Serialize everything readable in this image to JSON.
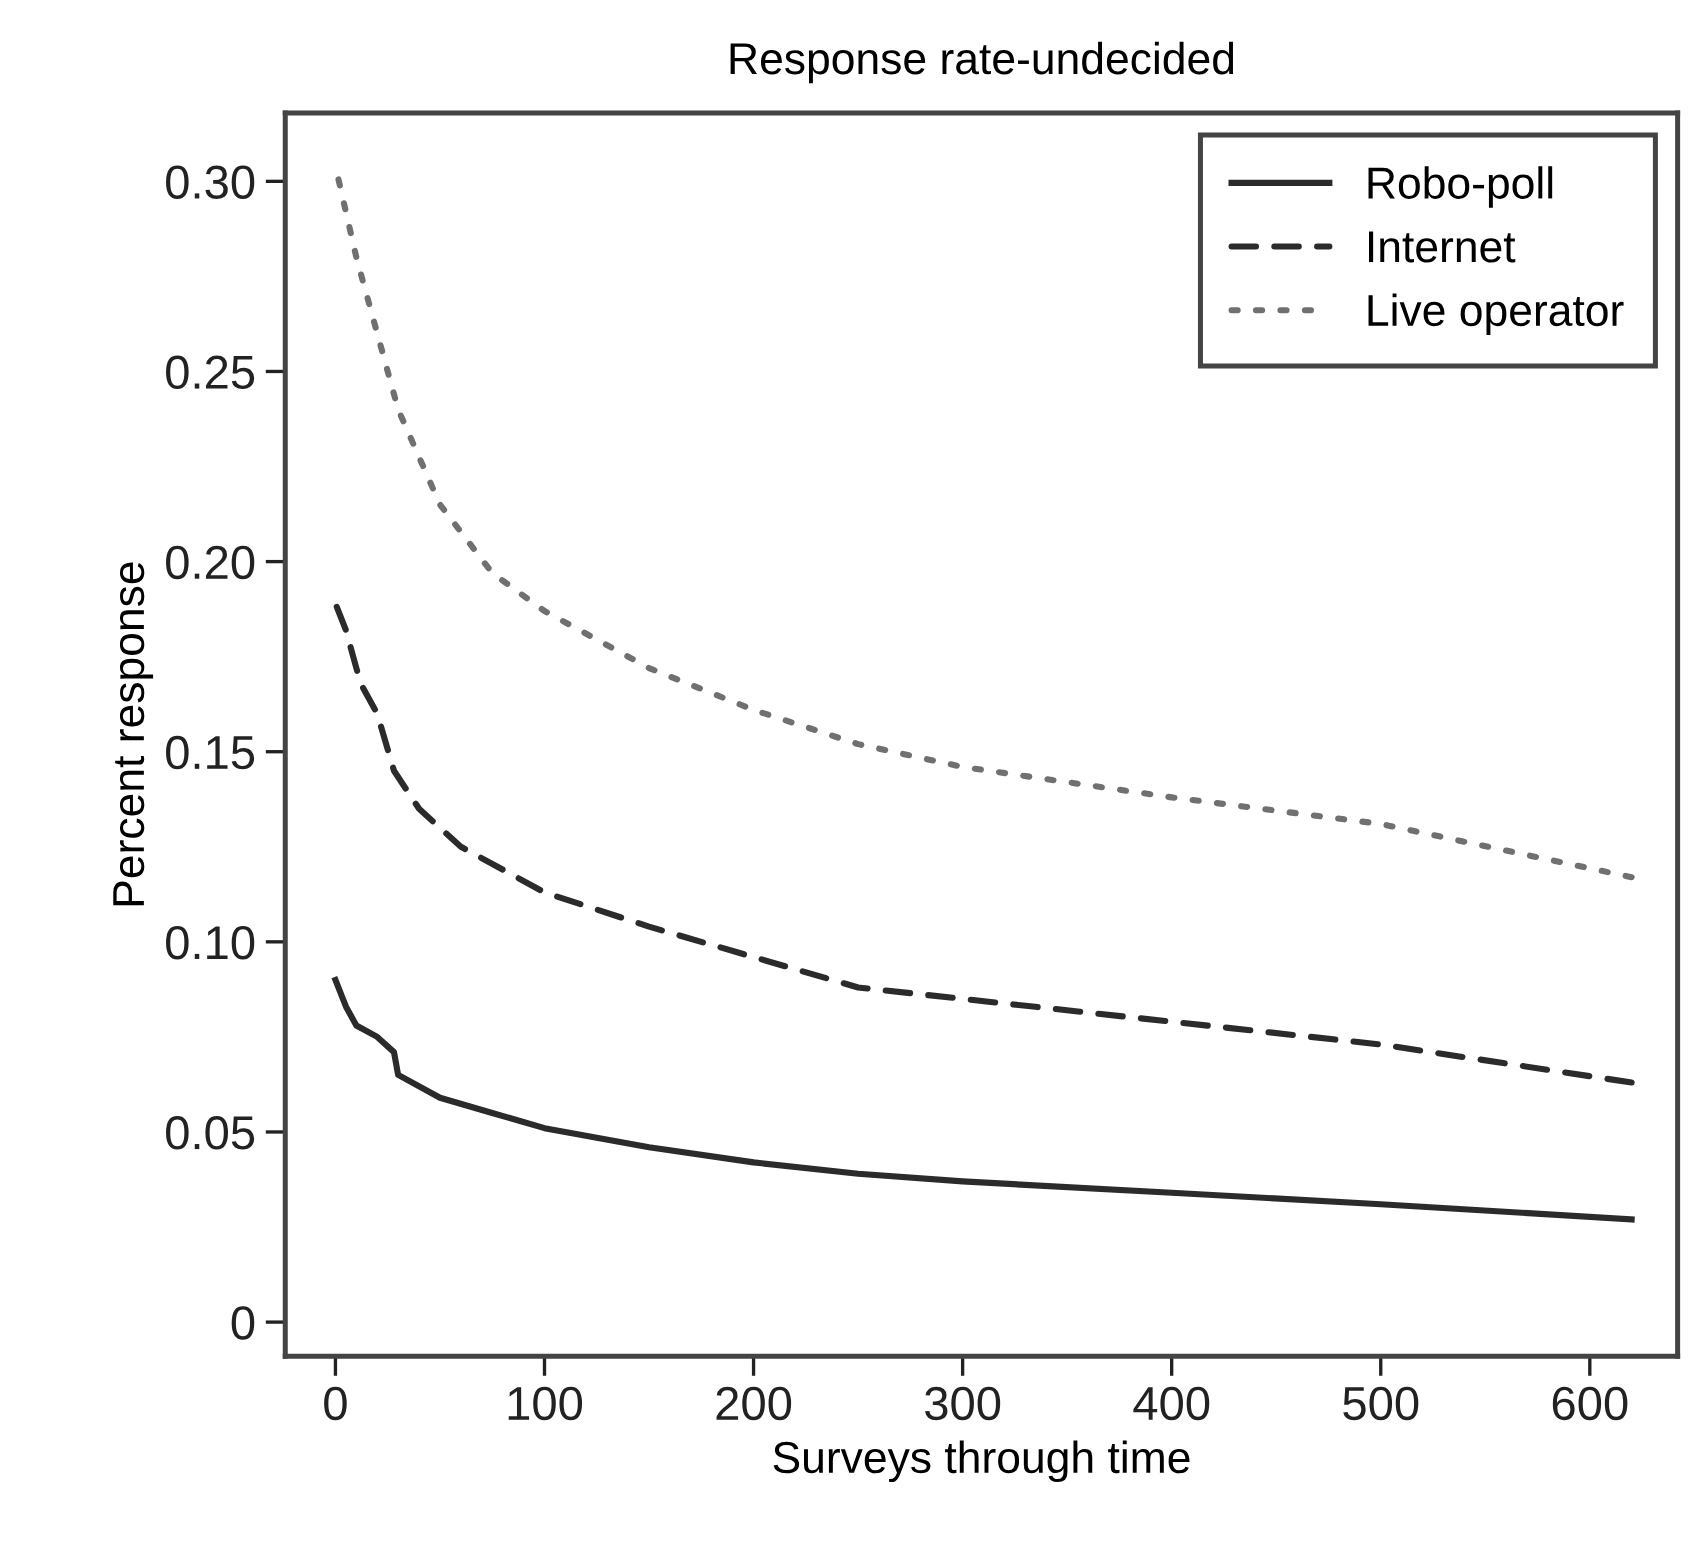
{
  "chart_data": {
    "type": "line",
    "title": "Response rate-undecided",
    "xlabel": "Surveys through time",
    "ylabel": "Percent response",
    "xlim": [
      -24,
      642
    ],
    "ylim": [
      -0.009,
      0.318
    ],
    "xticks": [
      0,
      100,
      200,
      300,
      400,
      500,
      600
    ],
    "yticks": [
      {
        "value": 0,
        "label": "0"
      },
      {
        "value": 0.05,
        "label": "0.05"
      },
      {
        "value": 0.1,
        "label": "0.10"
      },
      {
        "value": 0.15,
        "label": "0.15"
      },
      {
        "value": 0.2,
        "label": "0.20"
      },
      {
        "value": 0.25,
        "label": "0.25"
      },
      {
        "value": 0.3,
        "label": "0.30"
      }
    ],
    "legend": "top right",
    "grid": false,
    "marker": "none",
    "series": [
      {
        "name": "Robo-poll",
        "color": "#2b2b2b",
        "line_style": "solid",
        "x": [
          0,
          5,
          10,
          20,
          28,
          30,
          50,
          75,
          100,
          150,
          200,
          250,
          300,
          400,
          500,
          620
        ],
        "values": [
          0.09,
          0.083,
          0.078,
          0.075,
          0.071,
          0.065,
          0.059,
          0.055,
          0.051,
          0.046,
          0.042,
          0.039,
          0.037,
          0.034,
          0.031,
          0.027
        ]
      },
      {
        "name": "Internet",
        "color": "#2b2b2b",
        "line_style": "dashed",
        "x": [
          0,
          5,
          12,
          20,
          28,
          40,
          60,
          100,
          150,
          200,
          250,
          300,
          400,
          500,
          620
        ],
        "values": [
          0.189,
          0.182,
          0.168,
          0.16,
          0.145,
          0.135,
          0.125,
          0.113,
          0.104,
          0.096,
          0.088,
          0.085,
          0.079,
          0.073,
          0.063
        ]
      },
      {
        "name": "Live operator",
        "color": "#707070",
        "line_style": "dotted",
        "x": [
          0,
          10,
          20,
          30,
          50,
          75,
          100,
          150,
          200,
          250,
          300,
          400,
          500,
          560,
          620
        ],
        "values": [
          0.304,
          0.28,
          0.26,
          0.24,
          0.215,
          0.197,
          0.187,
          0.172,
          0.161,
          0.152,
          0.146,
          0.138,
          0.131,
          0.124,
          0.117
        ]
      }
    ]
  }
}
